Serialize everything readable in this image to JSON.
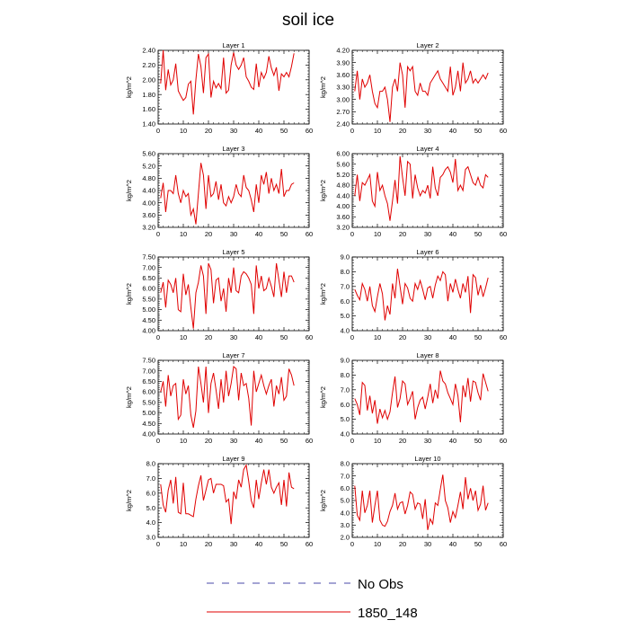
{
  "chart_data": {
    "type": "line",
    "title": "soil ice",
    "legend": {
      "placement": "bottom",
      "entries": [
        {
          "label": "No Obs",
          "color": "#4a4aa8",
          "style": "dashed"
        },
        {
          "label": "1850_148",
          "color": "#e00000",
          "style": "solid"
        }
      ]
    },
    "x": [
      1,
      2,
      3,
      4,
      5,
      6,
      7,
      8,
      9,
      10,
      11,
      12,
      13,
      14,
      15,
      16,
      17,
      18,
      19,
      20,
      21,
      22,
      23,
      24,
      25,
      26,
      27,
      28,
      29,
      30,
      31,
      32,
      33,
      34,
      35,
      36,
      37,
      38,
      39,
      40,
      41,
      42,
      43,
      44,
      45,
      46,
      47,
      48,
      49,
      50,
      51,
      52,
      53,
      54
    ],
    "xlim": [
      0,
      60
    ],
    "xticks": [
      "0",
      "10",
      "20",
      "30",
      "40",
      "50",
      "60"
    ],
    "panels": [
      {
        "title": "Layer 1",
        "ylabel": "kg/m^2",
        "ylim": [
          1.4,
          2.4
        ],
        "yticks": [
          "1.40",
          "1.60",
          "1.80",
          "2.00",
          "2.20",
          "2.40"
        ],
        "series": [
          {
            "name": "1850_148",
            "values": [
              1.95,
              2.4,
              1.86,
              2.14,
              1.93,
              2.0,
              2.22,
              1.85,
              1.78,
              1.72,
              1.76,
              1.94,
              1.98,
              1.53,
              2.0,
              2.35,
              2.18,
              1.82,
              2.3,
              2.35,
              1.76,
              1.98,
              1.89,
              1.95,
              1.88,
              2.3,
              1.82,
              1.86,
              2.2,
              2.37,
              2.2,
              2.14,
              2.2,
              2.3,
              2.04,
              1.98,
              1.9,
              1.87,
              2.22,
              1.9,
              2.1,
              2.02,
              2.1,
              2.32,
              2.16,
              2.06,
              2.17,
              1.85,
              2.08,
              2.04,
              2.1,
              2.04,
              2.18,
              2.36
            ]
          }
        ]
      },
      {
        "title": "Layer 2",
        "ylabel": "kg/m^2",
        "ylim": [
          2.4,
          4.2
        ],
        "yticks": [
          "2.40",
          "2.70",
          "3.00",
          "3.30",
          "3.60",
          "3.90",
          "4.20"
        ],
        "series": [
          {
            "name": "1850_148",
            "values": [
              3.2,
              3.7,
              3.0,
              3.5,
              3.3,
              3.4,
              3.6,
              3.2,
              2.9,
              2.8,
              3.2,
              3.2,
              3.3,
              3.0,
              2.45,
              3.3,
              3.5,
              3.2,
              3.9,
              3.6,
              2.8,
              3.8,
              3.7,
              3.8,
              3.2,
              3.1,
              3.4,
              3.2,
              3.2,
              3.1,
              3.4,
              3.5,
              3.6,
              3.7,
              3.5,
              3.4,
              3.3,
              3.2,
              3.8,
              3.1,
              3.3,
              3.7,
              3.2,
              3.9,
              3.4,
              3.5,
              3.7,
              3.4,
              3.5,
              3.4,
              3.5,
              3.6,
              3.5,
              3.65
            ]
          }
        ]
      },
      {
        "title": "Layer 3",
        "ylabel": "kg/m^2",
        "ylim": [
          3.2,
          5.6
        ],
        "yticks": [
          "3.20",
          "3.60",
          "4.00",
          "4.40",
          "4.80",
          "5.20",
          "5.60"
        ],
        "series": [
          {
            "name": "1850_148",
            "values": [
              4.15,
              4.65,
              3.7,
              4.4,
              4.4,
              4.3,
              4.9,
              4.3,
              4.0,
              4.4,
              4.2,
              4.3,
              3.6,
              3.8,
              3.3,
              4.3,
              5.3,
              4.9,
              3.8,
              4.9,
              4.2,
              4.3,
              4.7,
              4.1,
              4.6,
              4.0,
              3.9,
              4.2,
              4.0,
              4.2,
              4.6,
              4.3,
              4.2,
              4.9,
              4.5,
              4.4,
              4.1,
              3.7,
              4.6,
              4.0,
              4.9,
              4.6,
              5.0,
              4.3,
              4.8,
              4.4,
              4.6,
              4.3,
              5.1,
              4.2,
              4.4,
              4.4,
              4.6,
              4.65
            ]
          }
        ]
      },
      {
        "title": "Layer 4",
        "ylabel": "kg/m^2",
        "ylim": [
          3.2,
          6.0
        ],
        "yticks": [
          "3.20",
          "3.60",
          "4.00",
          "4.40",
          "4.80",
          "5.20",
          "5.60",
          "6.00"
        ],
        "series": [
          {
            "name": "1850_148",
            "values": [
              4.4,
              5.2,
              4.2,
              4.9,
              4.8,
              5.0,
              5.2,
              4.2,
              4.0,
              5.3,
              4.6,
              4.8,
              4.4,
              4.1,
              3.45,
              4.2,
              5.0,
              4.1,
              5.9,
              5.1,
              4.4,
              5.7,
              5.6,
              4.3,
              5.2,
              4.7,
              4.4,
              4.6,
              4.5,
              4.8,
              4.3,
              5.5,
              4.7,
              4.4,
              5.1,
              5.2,
              5.4,
              5.5,
              5.3,
              4.9,
              5.8,
              4.6,
              4.8,
              4.6,
              5.4,
              5.5,
              5.2,
              4.9,
              4.8,
              5.1,
              4.8,
              4.7,
              5.2,
              5.1
            ]
          }
        ]
      },
      {
        "title": "Layer 5",
        "ylabel": "kg/m^2",
        "ylim": [
          4.0,
          7.5
        ],
        "yticks": [
          "4.00",
          "4.50",
          "5.00",
          "5.50",
          "6.00",
          "6.50",
          "7.00",
          "7.50"
        ],
        "series": [
          {
            "name": "1850_148",
            "values": [
              5.8,
              6.3,
              5.1,
              6.4,
              6.2,
              5.8,
              6.5,
              5.0,
              4.9,
              6.7,
              5.7,
              6.2,
              5.1,
              4.1,
              5.8,
              6.3,
              7.1,
              6.6,
              4.8,
              7.2,
              6.9,
              5.3,
              6.4,
              6.5,
              5.4,
              6.0,
              4.9,
              6.5,
              5.8,
              7.0,
              5.9,
              5.8,
              6.6,
              6.8,
              6.7,
              6.5,
              6.2,
              4.8,
              7.1,
              6.0,
              6.6,
              5.9,
              6.0,
              6.5,
              6.1,
              5.6,
              7.2,
              6.4,
              5.6,
              6.8,
              5.8,
              6.6,
              6.6,
              6.3
            ]
          }
        ]
      },
      {
        "title": "Layer 6",
        "ylabel": "kg/m^2",
        "ylim": [
          4.0,
          9.0
        ],
        "yticks": [
          "4.0",
          "5.0",
          "6.0",
          "7.0",
          "8.0",
          "9.0"
        ],
        "series": [
          {
            "name": "1850_148",
            "values": [
              6.8,
              6.4,
              6.1,
              7.2,
              6.8,
              6.0,
              7.0,
              5.7,
              5.3,
              6.3,
              7.2,
              6.5,
              4.7,
              5.7,
              5.1,
              7.2,
              6.2,
              8.2,
              7.0,
              5.8,
              7.2,
              6.9,
              6.2,
              6.0,
              7.2,
              6.8,
              7.4,
              6.8,
              6.1,
              6.9,
              7.0,
              6.2,
              7.1,
              7.7,
              7.4,
              8.0,
              7.8,
              6.0,
              7.2,
              6.6,
              7.5,
              6.8,
              6.2,
              7.2,
              6.6,
              7.7,
              5.2,
              7.8,
              7.6,
              6.4,
              7.1,
              6.3,
              6.9,
              7.6
            ]
          }
        ]
      },
      {
        "title": "Layer 7",
        "ylabel": "kg/m^2",
        "ylim": [
          4.0,
          7.5
        ],
        "yticks": [
          "4.00",
          "4.50",
          "5.00",
          "5.50",
          "6.00",
          "6.50",
          "7.00",
          "7.50"
        ],
        "series": [
          {
            "name": "1850_148",
            "values": [
              6.0,
              6.5,
              5.3,
              6.8,
              5.8,
              6.3,
              6.4,
              4.7,
              4.9,
              6.6,
              5.9,
              6.3,
              4.9,
              4.3,
              5.1,
              7.2,
              6.4,
              5.5,
              7.2,
              5.0,
              6.4,
              6.9,
              6.1,
              5.2,
              6.6,
              5.5,
              7.0,
              5.8,
              6.4,
              7.2,
              7.1,
              5.6,
              6.9,
              6.3,
              6.4,
              5.7,
              4.4,
              7.0,
              6.0,
              6.4,
              6.8,
              6.3,
              5.9,
              6.3,
              6.6,
              5.3,
              6.3,
              5.9,
              6.7,
              5.6,
              5.8,
              7.1,
              6.8,
              6.3
            ]
          }
        ]
      },
      {
        "title": "Layer 8",
        "ylabel": "kg/m^2",
        "ylim": [
          4.0,
          9.0
        ],
        "yticks": [
          "4.0",
          "5.0",
          "6.0",
          "7.0",
          "8.0",
          "9.0"
        ],
        "series": [
          {
            "name": "1850_148",
            "values": [
              6.4,
              6.0,
              5.3,
              7.5,
              7.3,
              5.6,
              6.6,
              5.4,
              6.3,
              4.7,
              5.7,
              5.1,
              5.6,
              5.0,
              5.5,
              6.8,
              7.9,
              5.8,
              6.4,
              7.6,
              7.4,
              6.0,
              6.4,
              6.9,
              5.0,
              5.8,
              6.3,
              6.5,
              5.7,
              6.5,
              7.4,
              6.1,
              7.0,
              6.4,
              8.3,
              7.6,
              7.4,
              6.8,
              6.4,
              6.0,
              7.4,
              6.6,
              4.8,
              7.3,
              6.5,
              7.8,
              6.2,
              7.6,
              7.5,
              6.8,
              6.3,
              8.1,
              7.5,
              6.9
            ]
          }
        ]
      },
      {
        "title": "Layer 9",
        "ylabel": "kg/m^2",
        "ylim": [
          3.0,
          8.0
        ],
        "yticks": [
          "3.0",
          "4.0",
          "5.0",
          "6.0",
          "7.0",
          "8.0"
        ],
        "series": [
          {
            "name": "1850_148",
            "values": [
              6.6,
              5.2,
              4.7,
              6.2,
              6.9,
              5.3,
              7.1,
              4.7,
              4.6,
              6.7,
              4.6,
              4.6,
              4.5,
              4.4,
              5.6,
              6.5,
              7.2,
              5.5,
              6.2,
              6.9,
              7.0,
              6.0,
              6.6,
              6.6,
              6.6,
              6.5,
              5.4,
              5.6,
              3.9,
              6.1,
              5.6,
              6.9,
              6.4,
              7.6,
              7.9,
              6.8,
              5.5,
              5.0,
              6.9,
              5.6,
              6.7,
              7.6,
              6.6,
              7.6,
              6.4,
              6.0,
              6.4,
              6.7,
              5.2,
              6.9,
              5.1,
              7.4,
              6.4,
              6.3
            ]
          }
        ]
      },
      {
        "title": "Layer 10",
        "ylabel": "kg/m^2",
        "ylim": [
          2.0,
          8.0
        ],
        "yticks": [
          "2.0",
          "3.0",
          "4.0",
          "5.0",
          "6.0",
          "7.0",
          "8.0"
        ],
        "series": [
          {
            "name": "1850_148",
            "values": [
              6.2,
              3.8,
              3.4,
              5.8,
              4.0,
              4.6,
              5.8,
              3.2,
              4.6,
              5.8,
              3.4,
              3.0,
              2.9,
              3.3,
              4.1,
              4.6,
              5.6,
              4.3,
              4.8,
              4.9,
              3.9,
              4.6,
              5.7,
              5.5,
              4.3,
              4.8,
              4.7,
              3.5,
              5.1,
              2.6,
              3.5,
              3.1,
              4.8,
              4.6,
              5.9,
              7.1,
              5.0,
              4.4,
              3.2,
              4.1,
              3.6,
              4.6,
              5.7,
              4.3,
              6.9,
              5.1,
              6.0,
              5.0,
              5.8,
              4.2,
              4.7,
              6.2,
              4.2,
              4.8
            ]
          }
        ]
      }
    ]
  }
}
